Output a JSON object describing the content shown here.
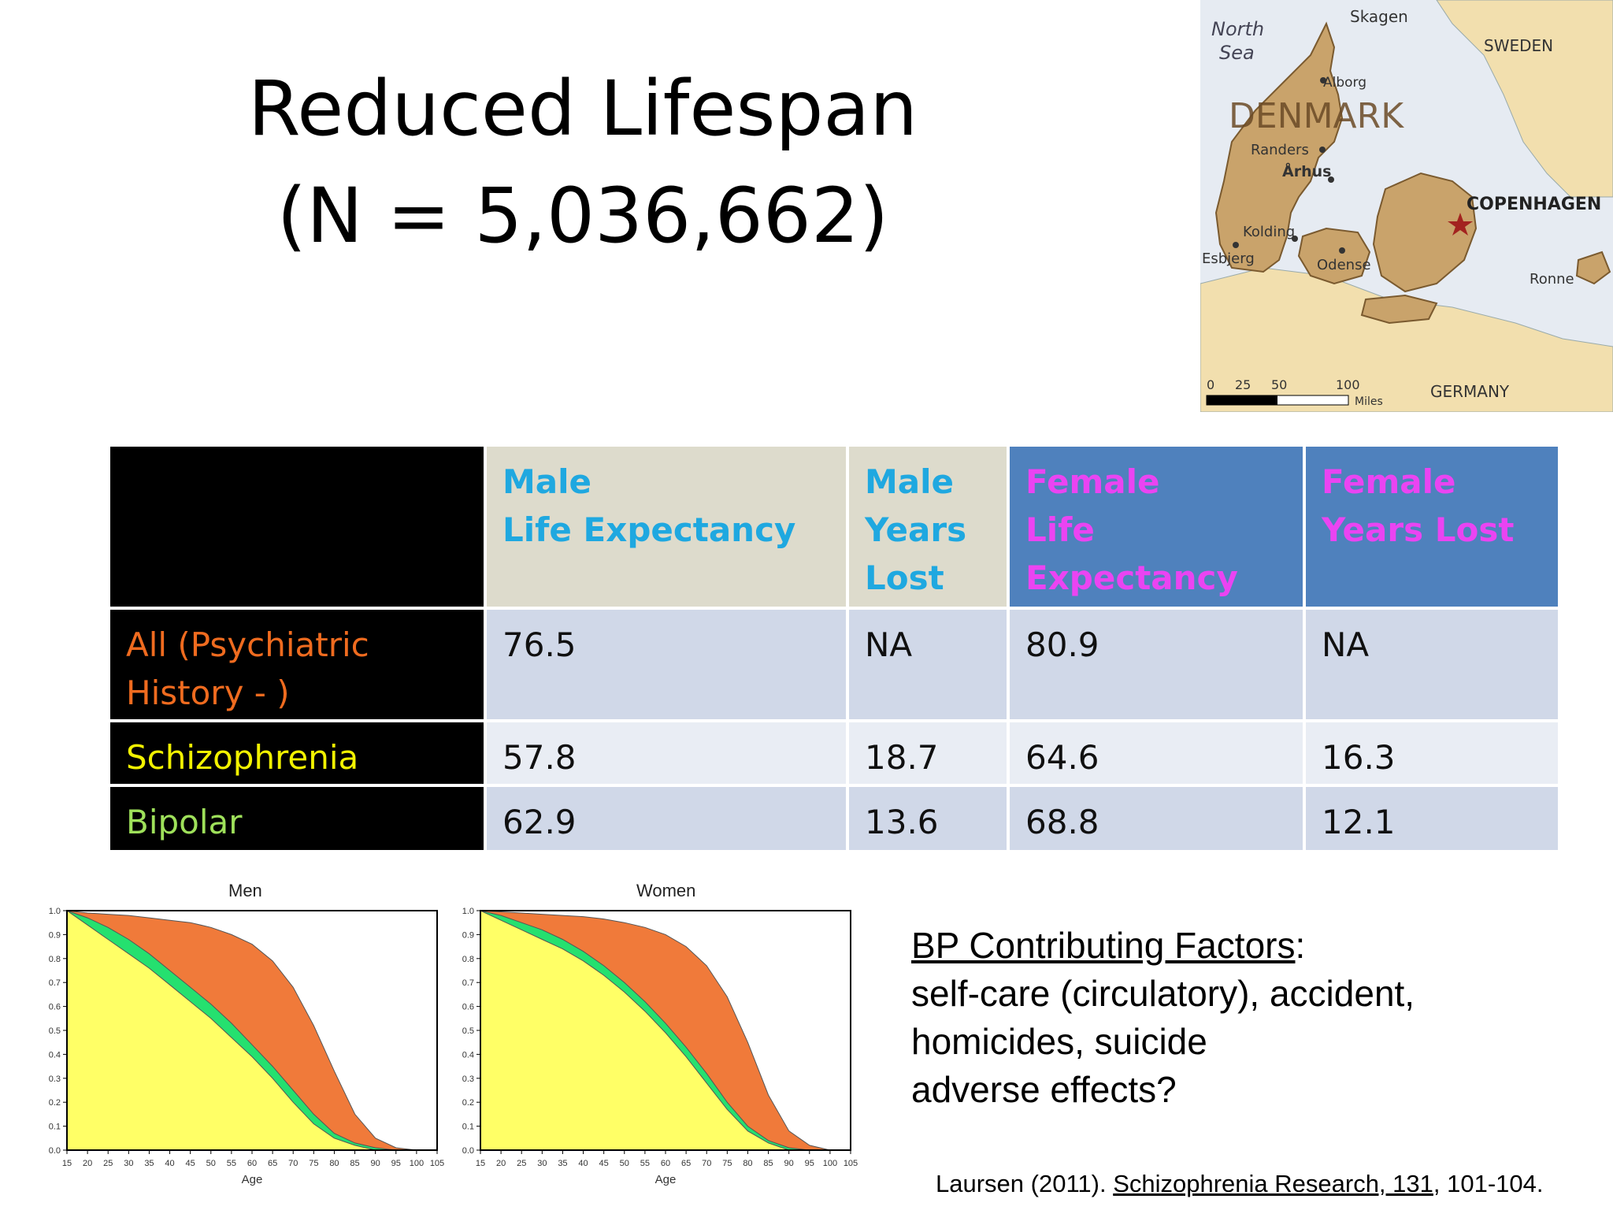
{
  "slide": {
    "title_line1": "Reduced Lifespan",
    "title_line2": "(N = 5,036,662)"
  },
  "map": {
    "labels": {
      "north_sea_1": "North",
      "north_sea_2": "Sea",
      "skagen": "Skagen",
      "sweden": "SWEDEN",
      "aalborg": "Alborg",
      "denmark": "DENMARK",
      "randers": "Randers",
      "arhus": "Århus",
      "copenhagen": "COPENHAGEN",
      "kolding": "Kolding",
      "esbjerg": "Esbjerg",
      "odense": "Odense",
      "ronne": "Ronne",
      "scale_0": "0",
      "scale_25": "25",
      "scale_50": "50",
      "scale_100": "100",
      "scale_miles": "Miles",
      "germany": "GERMANY"
    },
    "colors": {
      "land": "#c9a36b",
      "sea": "#e6ebf2",
      "neighbor": "#f2dfae",
      "capital": "#a3231f"
    }
  },
  "table": {
    "header": {
      "male_life_1": "Male",
      "male_life_2": "Life Expectancy",
      "male_lost_1": "Male",
      "male_lost_2": "Years",
      "male_lost_3": "Lost",
      "female_life_1": "Female",
      "female_life_2": "Life",
      "female_life_3": "Expectancy",
      "female_lost_1": "Female",
      "female_lost_2": "Years Lost"
    },
    "rows": [
      {
        "label_1": "All (Psychiatric",
        "label_2": "History - )",
        "male_le": "76.5",
        "male_yl": "NA",
        "female_le": "80.9",
        "female_yl": "NA"
      },
      {
        "label_1": "Schizophrenia",
        "male_le": "57.8",
        "male_yl": "18.7",
        "female_le": "64.6",
        "female_yl": "16.3"
      },
      {
        "label_1": "Bipolar",
        "male_le": "62.9",
        "male_yl": "13.6",
        "female_le": "68.8",
        "female_yl": "12.1"
      }
    ]
  },
  "chart_data": [
    {
      "type": "area",
      "title": "Men",
      "xlabel": "Age",
      "ylabel": "",
      "xlim": [
        15,
        105
      ],
      "ylim": [
        0,
        1
      ],
      "x_ticks": [
        "15",
        "20",
        "25",
        "30",
        "35",
        "40",
        "45",
        "50",
        "55",
        "60",
        "65",
        "70",
        "75",
        "80",
        "85",
        "90",
        "95",
        "100",
        "105"
      ],
      "y_ticks": [
        "0.0",
        "0.1",
        "0.2",
        "0.3",
        "0.4",
        "0.5",
        "0.6",
        "0.7",
        "0.8",
        "0.9",
        "1.0"
      ],
      "x": [
        15,
        20,
        25,
        30,
        35,
        40,
        45,
        50,
        55,
        60,
        65,
        70,
        75,
        80,
        85,
        90,
        95,
        100,
        105
      ],
      "series": [
        {
          "color": "#f07a3a",
          "values": [
            1.0,
            0.99,
            0.985,
            0.98,
            0.97,
            0.96,
            0.95,
            0.93,
            0.9,
            0.86,
            0.79,
            0.68,
            0.52,
            0.33,
            0.15,
            0.05,
            0.01,
            0.0,
            0.0
          ]
        },
        {
          "color": "#25e06f",
          "values": [
            1.0,
            0.97,
            0.93,
            0.88,
            0.82,
            0.75,
            0.68,
            0.61,
            0.53,
            0.44,
            0.35,
            0.25,
            0.15,
            0.07,
            0.03,
            0.01,
            0.0,
            0.0,
            0.0
          ]
        },
        {
          "color": "#ffff66",
          "values": [
            1.0,
            0.94,
            0.88,
            0.82,
            0.76,
            0.69,
            0.62,
            0.55,
            0.47,
            0.39,
            0.3,
            0.2,
            0.11,
            0.05,
            0.02,
            0.0,
            0.0,
            0.0,
            0.0
          ]
        }
      ]
    },
    {
      "type": "area",
      "title": "Women",
      "xlabel": "Age",
      "ylabel": "",
      "xlim": [
        15,
        105
      ],
      "ylim": [
        0,
        1
      ],
      "x_ticks": [
        "15",
        "20",
        "25",
        "30",
        "35",
        "40",
        "45",
        "50",
        "55",
        "60",
        "65",
        "70",
        "75",
        "80",
        "85",
        "90",
        "95",
        "100",
        "105"
      ],
      "y_ticks": [
        "0.0",
        "0.1",
        "0.2",
        "0.3",
        "0.4",
        "0.5",
        "0.6",
        "0.7",
        "0.8",
        "0.9",
        "1.0"
      ],
      "x": [
        15,
        20,
        25,
        30,
        35,
        40,
        45,
        50,
        55,
        60,
        65,
        70,
        75,
        80,
        85,
        90,
        95,
        100,
        105
      ],
      "series": [
        {
          "color": "#f07a3a",
          "values": [
            1.0,
            0.995,
            0.99,
            0.985,
            0.98,
            0.975,
            0.965,
            0.95,
            0.93,
            0.9,
            0.85,
            0.77,
            0.64,
            0.45,
            0.23,
            0.08,
            0.02,
            0.0,
            0.0
          ]
        },
        {
          "color": "#25e06f",
          "values": [
            1.0,
            0.98,
            0.95,
            0.92,
            0.88,
            0.83,
            0.77,
            0.7,
            0.62,
            0.53,
            0.43,
            0.32,
            0.2,
            0.1,
            0.04,
            0.01,
            0.0,
            0.0,
            0.0
          ]
        },
        {
          "color": "#ffff66",
          "values": [
            1.0,
            0.96,
            0.92,
            0.88,
            0.84,
            0.79,
            0.73,
            0.66,
            0.58,
            0.49,
            0.39,
            0.28,
            0.17,
            0.08,
            0.03,
            0.0,
            0.0,
            0.0,
            0.0
          ]
        }
      ]
    }
  ],
  "factors": {
    "heading": "BP Contributing Factors",
    "colon": ":",
    "line1": "self-care (circulatory), accident,",
    "line2": "homicides, suicide",
    "line3": "adverse effects?"
  },
  "citation": {
    "prefix": "Laursen (2011). ",
    "journal": "Schizophrenia Research, 131",
    "suffix": ", 101-104."
  }
}
